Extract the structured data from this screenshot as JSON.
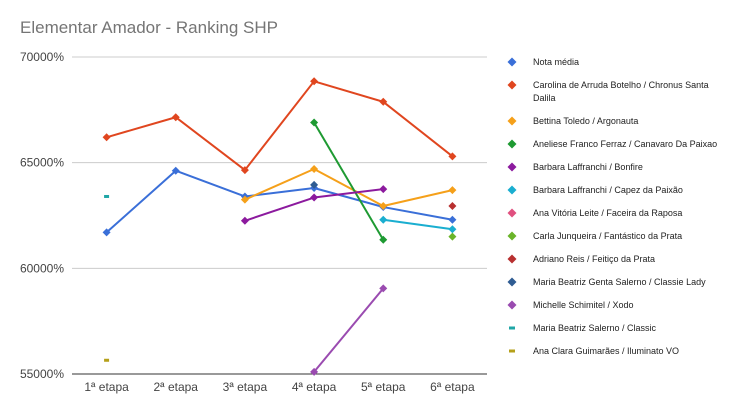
{
  "chart_data": {
    "type": "line",
    "title": "Elementar Amador - Ranking SHP",
    "xlabel": "",
    "ylabel": "",
    "categories": [
      "1ª etapa",
      "2ª etapa",
      "3ª etapa",
      "4ª etapa",
      "5ª etapa",
      "6ª etapa"
    ],
    "ylim": [
      55000,
      70000
    ],
    "yticks": [
      55000,
      60000,
      65000,
      70000
    ],
    "ytick_labels": [
      "55000%",
      "60000%",
      "65000%",
      "70000%"
    ],
    "gridlines": true,
    "legend_position": "right",
    "series": [
      {
        "name": "Nota média",
        "color": "#3a6fd8",
        "marker": "diamond",
        "values": [
          61700,
          64620,
          63400,
          63800,
          62900,
          62300
        ]
      },
      {
        "name": "Carolina de Arruda Botelho / Chronus Santa Dalila",
        "color": "#e0461f",
        "marker": "diamond",
        "values": [
          66200,
          67150,
          64650,
          68850,
          67880,
          65300
        ]
      },
      {
        "name": "Bettina Toledo / Argonauta",
        "color": "#f5a01a",
        "marker": "diamond",
        "values": [
          null,
          null,
          63250,
          64700,
          62950,
          63700
        ]
      },
      {
        "name": "Aneliese Franco Ferraz / Canavaro Da Paixao",
        "color": "#1e9a32",
        "marker": "diamond",
        "values": [
          null,
          null,
          null,
          66900,
          61350,
          null
        ]
      },
      {
        "name": "Barbara Laffranchi / Bonfire",
        "color": "#8c1a9e",
        "marker": "diamond",
        "values": [
          null,
          null,
          62250,
          63350,
          63750,
          null
        ]
      },
      {
        "name": "Barbara Laffranchi / Capez da Paixão",
        "color": "#1aaed0",
        "marker": "diamond",
        "values": [
          null,
          null,
          null,
          null,
          62300,
          61850
        ]
      },
      {
        "name": "Ana Vitória Leite / Faceira da Raposa",
        "color": "#e0507f",
        "marker": "diamond",
        "values": [
          null,
          null,
          null,
          null,
          null,
          null
        ]
      },
      {
        "name": "Carla Junqueira / Fantástico da Prata",
        "color": "#6ab42a",
        "marker": "diamond",
        "values": [
          null,
          null,
          null,
          null,
          null,
          61500
        ]
      },
      {
        "name": "Adriano Reis / Feitiço da Prata",
        "color": "#b83030",
        "marker": "diamond",
        "values": [
          null,
          null,
          null,
          null,
          null,
          62950
        ]
      },
      {
        "name": "Maria Beatriz Genta Salerno / Classie Lady",
        "color": "#2f5c92",
        "marker": "diamond",
        "values": [
          null,
          null,
          null,
          63950,
          null,
          null
        ]
      },
      {
        "name": "Michelle Schimitel / Xodo",
        "color": "#9a4bb0",
        "marker": "diamond",
        "values": [
          null,
          null,
          null,
          55100,
          59050,
          null
        ]
      },
      {
        "name": "Maria Beatriz Salerno / Classic",
        "color": "#1fa6a6",
        "marker": "dash",
        "values": [
          63400,
          null,
          null,
          null,
          null,
          null
        ]
      },
      {
        "name": "Ana Clara Guimarães / Iluminato VO",
        "color": "#b5a01a",
        "marker": "dash",
        "values": [
          55650,
          null,
          null,
          null,
          null,
          null
        ]
      }
    ]
  }
}
